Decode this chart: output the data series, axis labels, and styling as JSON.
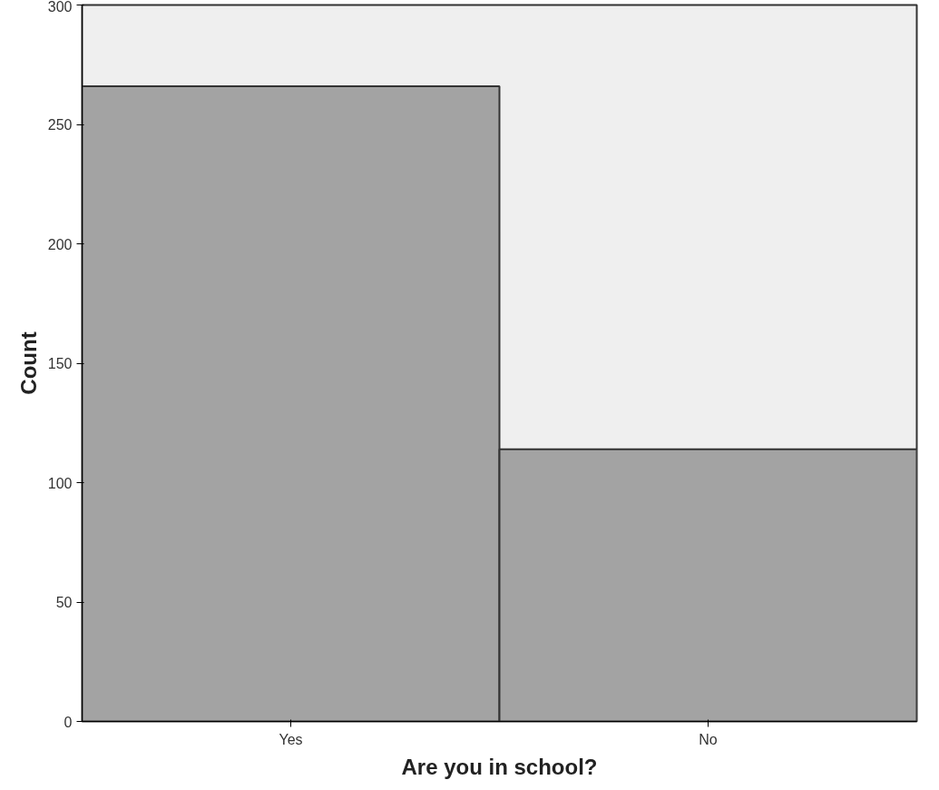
{
  "chart_data": {
    "type": "bar",
    "xlabel": "Are you in school?",
    "ylabel": "Count",
    "categories": [
      "Yes",
      "No"
    ],
    "values": [
      266,
      114
    ],
    "color": "#a3a3a3",
    "ylim": [
      0,
      300
    ],
    "yticks": [
      0,
      50,
      100,
      150,
      200,
      250,
      300
    ],
    "grid": false
  }
}
